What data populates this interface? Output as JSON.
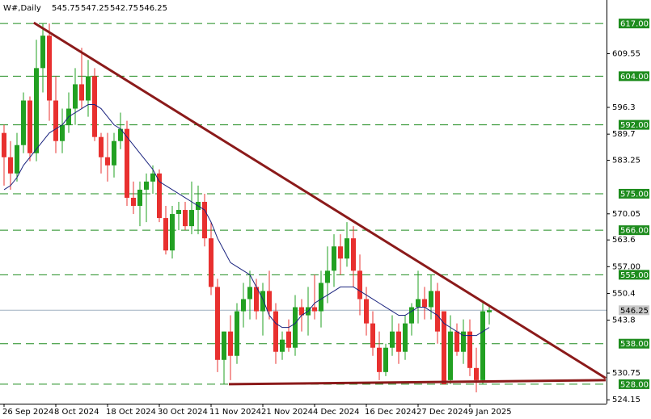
{
  "chart_data": {
    "type": "candlestick",
    "title": "W#,Daily",
    "header_values": [
      545.75,
      547.25,
      542.75,
      546.25
    ],
    "categories": [
      "26 Sep 2024",
      null,
      null,
      null,
      null,
      null,
      null,
      null,
      "8 Oct 2024",
      null,
      null,
      null,
      null,
      null,
      null,
      null,
      "18 Oct 2024",
      null,
      null,
      null,
      null,
      null,
      null,
      null,
      "30 Oct 2024",
      null,
      null,
      null,
      null,
      null,
      null,
      null,
      "11 Nov 2024",
      null,
      null,
      null,
      null,
      null,
      null,
      null,
      "21 Nov 2024",
      null,
      null,
      null,
      null,
      null,
      null,
      null,
      "4 Dec 2024",
      null,
      null,
      null,
      null,
      null,
      null,
      null,
      "16 Dec 2024",
      null,
      null,
      null,
      null,
      null,
      null,
      null,
      "27 Dec 2024",
      null,
      null,
      null,
      null,
      null,
      null,
      null,
      "9 Jan 2025",
      null,
      null,
      null
    ],
    "open": [
      590,
      584,
      580,
      587,
      598,
      585,
      606,
      614,
      598,
      588,
      592,
      596,
      602,
      598,
      604,
      589,
      584,
      582,
      588,
      591,
      574,
      572,
      576,
      578,
      580,
      569,
      561,
      570,
      571,
      567,
      571,
      573,
      564,
      552,
      534,
      541,
      535,
      546,
      549,
      552,
      546,
      551,
      546,
      536,
      541,
      537,
      547,
      545,
      547,
      546,
      553,
      556,
      562,
      559,
      564,
      556,
      549,
      543,
      537,
      531,
      537,
      541,
      536,
      543,
      547,
      549,
      547,
      551,
      546,
      529,
      541,
      536,
      541,
      532,
      529,
      545.75
    ],
    "high": [
      592,
      588,
      590,
      600,
      599,
      613,
      617,
      617,
      604,
      596,
      600,
      606,
      611,
      608,
      606,
      590,
      590,
      590,
      595,
      593,
      578,
      578,
      580,
      582,
      581,
      572,
      572,
      573,
      573,
      578,
      577,
      575,
      568,
      554,
      541,
      545,
      548,
      553,
      556,
      554,
      553,
      556,
      548,
      541,
      544,
      550,
      549,
      552,
      555,
      556,
      562,
      565,
      565,
      568,
      567,
      560,
      552,
      546,
      541,
      538,
      545,
      543,
      545,
      548,
      556,
      552,
      555,
      553,
      546,
      545,
      543,
      544,
      544,
      537,
      548,
      547.25
    ],
    "low": [
      577,
      576,
      578,
      585,
      583,
      583,
      600,
      593,
      585,
      585,
      590,
      592,
      596,
      594,
      588,
      580,
      578,
      579,
      586,
      572,
      570,
      567,
      568,
      575,
      568,
      560,
      559,
      566,
      566,
      565,
      565,
      562,
      550,
      531,
      528,
      529,
      533,
      542,
      544,
      544,
      540,
      544,
      533,
      534,
      536,
      535,
      541,
      540,
      544,
      542,
      548,
      552,
      555,
      557,
      552,
      545,
      540,
      535,
      529,
      530,
      535,
      533,
      534,
      540,
      543,
      544,
      544,
      538,
      528,
      528,
      535,
      533,
      530,
      526,
      528,
      542.75
    ],
    "close": [
      584,
      580,
      587,
      598,
      585,
      606,
      614,
      598,
      588,
      592,
      596,
      602,
      598,
      604,
      589,
      584,
      582,
      588,
      591,
      574,
      572,
      576,
      578,
      580,
      569,
      561,
      570,
      571,
      567,
      571,
      573,
      564,
      552,
      534,
      541,
      535,
      546,
      549,
      552,
      546,
      551,
      546,
      536,
      539,
      537,
      547,
      545,
      547,
      546,
      553,
      556,
      562,
      559,
      564,
      556,
      549,
      543,
      537,
      531,
      537,
      541,
      536,
      543,
      547,
      549,
      547,
      551,
      541,
      528,
      541,
      536,
      541,
      532,
      529,
      546,
      546.25
    ],
    "ma": [
      576,
      577,
      579,
      582,
      584,
      586,
      588,
      590,
      591,
      592,
      594,
      595,
      596,
      597,
      597,
      596,
      594,
      592,
      591,
      589,
      587,
      585,
      583,
      581,
      578,
      577,
      576,
      575,
      574,
      573,
      572,
      571,
      568,
      564,
      561,
      558,
      557,
      556,
      555,
      552,
      549,
      545,
      543,
      542,
      542,
      543,
      545,
      546,
      548,
      549,
      550,
      551,
      552,
      552,
      552,
      551,
      550,
      549,
      548,
      547,
      546,
      545,
      545,
      546,
      547,
      547,
      546,
      545,
      543,
      542,
      541,
      540,
      540,
      540,
      541,
      542
    ],
    "up_color": "#22a022",
    "down_color": "#e8302f",
    "ma_color": "#1a237e",
    "ylim": [
      523.2,
      622.8
    ],
    "yticks": [
      609.55,
      596.3,
      589.7,
      583.25,
      570.05,
      563.6,
      {
        "value": 557,
        "label": "557.00"
      },
      550.4,
      543.8,
      530.75,
      524.15
    ],
    "levels": [
      {
        "value": 617,
        "label": "617.00"
      },
      {
        "value": 604,
        "label": "604.00"
      },
      {
        "value": 592,
        "label": "592.00"
      },
      {
        "value": 575,
        "label": "575.00"
      },
      {
        "value": 566,
        "label": "566.00"
      },
      {
        "value": 555,
        "label": "555.00"
      },
      {
        "value": 538,
        "label": "538.00"
      },
      {
        "value": 528,
        "label": "528.00"
      }
    ],
    "level_color": "#1e8c1e",
    "current_price": 546.25,
    "trendlines": [
      {
        "from": [
          4.6,
          617.2
        ],
        "to": [
          93,
          529.5
        ],
        "color": "#8b1a1a"
      },
      {
        "from": [
          34.75,
          528
        ],
        "to": [
          93,
          529
        ],
        "color": "#8b1a1a"
      }
    ]
  }
}
